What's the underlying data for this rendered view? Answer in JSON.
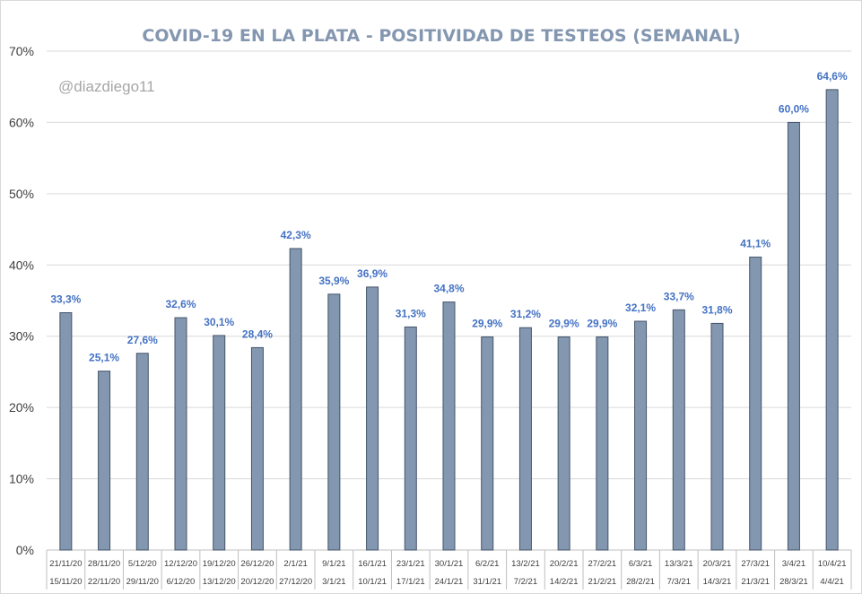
{
  "chart_data": {
    "type": "bar",
    "title": "COVID-19 EN LA PLATA - POSITIVIDAD DE TESTEOS (SEMANAL)",
    "watermark": "@diazdiego11",
    "ylim": [
      0,
      70
    ],
    "y_tick_values": [
      0,
      10,
      20,
      30,
      40,
      50,
      60,
      70
    ],
    "y_tick_labels": [
      "0%",
      "10%",
      "20%",
      "30%",
      "40%",
      "50%",
      "60%",
      "70%"
    ],
    "grid": true,
    "legend": "none",
    "categories": [
      {
        "end": "21/11/20",
        "start": "15/11/20"
      },
      {
        "end": "28/11/20",
        "start": "22/11/20"
      },
      {
        "end": "5/12/20",
        "start": "29/11/20"
      },
      {
        "end": "12/12/20",
        "start": "6/12/20"
      },
      {
        "end": "19/12/20",
        "start": "13/12/20"
      },
      {
        "end": "26/12/20",
        "start": "20/12/20"
      },
      {
        "end": "2/1/21",
        "start": "27/12/20"
      },
      {
        "end": "9/1/21",
        "start": "3/1/21"
      },
      {
        "end": "16/1/21",
        "start": "10/1/21"
      },
      {
        "end": "23/1/21",
        "start": "17/1/21"
      },
      {
        "end": "30/1/21",
        "start": "24/1/21"
      },
      {
        "end": "6/2/21",
        "start": "31/1/21"
      },
      {
        "end": "13/2/21",
        "start": "7/2/21"
      },
      {
        "end": "20/2/21",
        "start": "14/2/21"
      },
      {
        "end": "27/2/21",
        "start": "21/2/21"
      },
      {
        "end": "6/3/21",
        "start": "28/2/21"
      },
      {
        "end": "13/3/21",
        "start": "7/3/21"
      },
      {
        "end": "20/3/21",
        "start": "14/3/21"
      },
      {
        "end": "27/3/21",
        "start": "21/3/21"
      },
      {
        "end": "3/4/21",
        "start": "28/3/21"
      },
      {
        "end": "10/4/21",
        "start": "4/4/21"
      }
    ],
    "values": [
      33.3,
      25.1,
      27.6,
      32.6,
      30.1,
      28.4,
      42.3,
      35.9,
      36.9,
      31.3,
      34.8,
      29.9,
      31.2,
      29.9,
      29.9,
      32.1,
      33.7,
      31.8,
      41.1,
      60.0,
      64.6
    ],
    "data_labels": [
      "33,3%",
      "25,1%",
      "27,6%",
      "32,6%",
      "30,1%",
      "28,4%",
      "42,3%",
      "35,9%",
      "36,9%",
      "31,3%",
      "34,8%",
      "29,9%",
      "31,2%",
      "29,9%",
      "29,9%",
      "32,1%",
      "33,7%",
      "31,8%",
      "41,1%",
      "60,0%",
      "64,6%"
    ],
    "colors": {
      "bar_fill": "#8497b0",
      "bar_stroke": "#44546a",
      "data_label": "#4472c4",
      "title": "#8497b0"
    }
  }
}
